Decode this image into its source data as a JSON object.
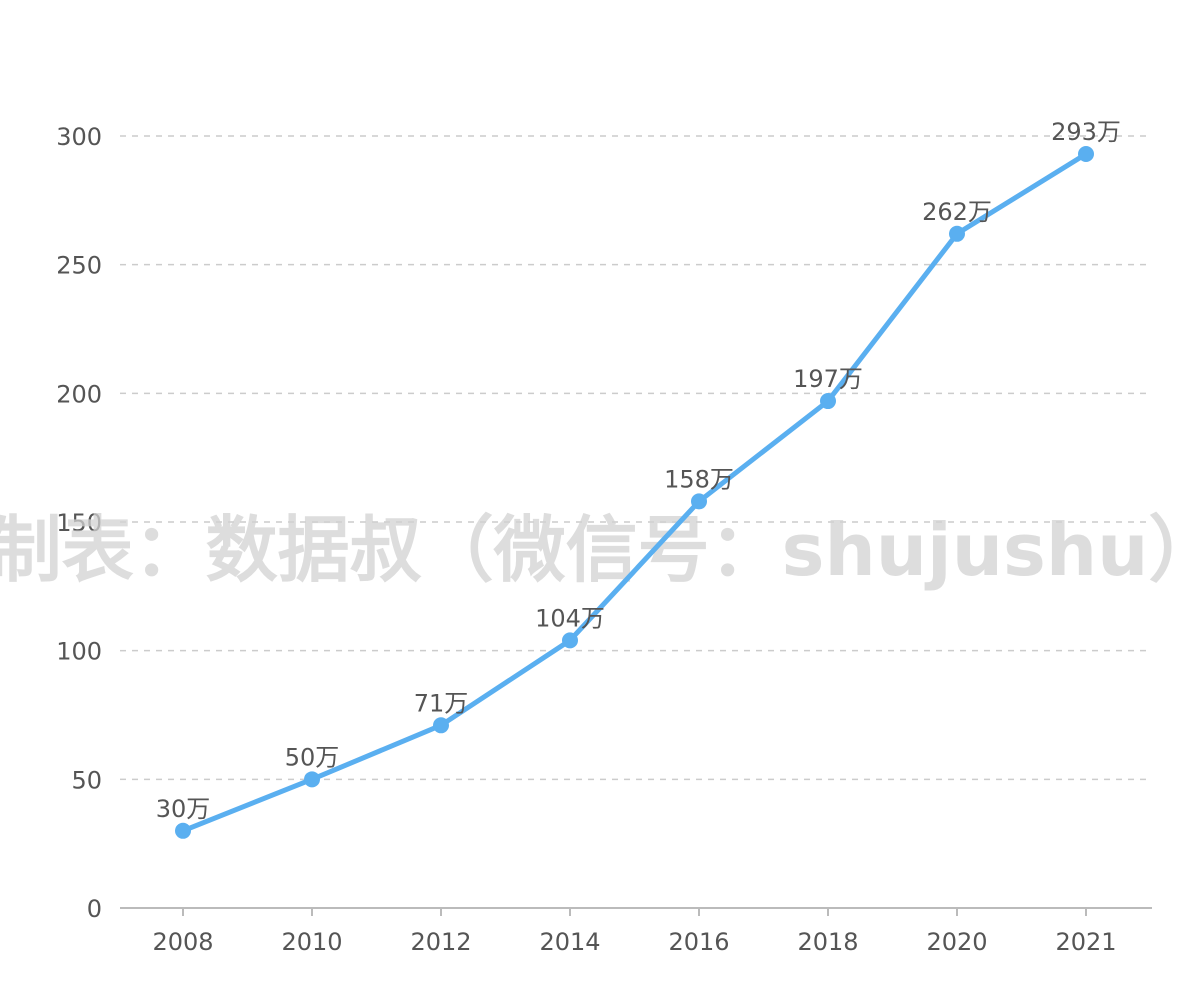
{
  "chart_data": {
    "type": "line",
    "title": "",
    "xlabel": "",
    "ylabel": "",
    "categories": [
      "2008",
      "2010",
      "2012",
      "2014",
      "2016",
      "2018",
      "2020",
      "2021"
    ],
    "series": [
      {
        "values": [
          30,
          50,
          71,
          104,
          158,
          197,
          262,
          293
        ],
        "data_labels": [
          "30万",
          "50万",
          "71万",
          "104万",
          "158万",
          "197万",
          "262万",
          "293万"
        ]
      }
    ],
    "ylim": [
      0,
      300
    ],
    "yticks": [
      0,
      50,
      100,
      150,
      200,
      250,
      300
    ],
    "grid": true,
    "legend": "none",
    "colors": {
      "line": "#5aaff0",
      "grid": "#cccccc",
      "axis": "#bbbbbb",
      "text": "#555555",
      "watermark": "#d2d2d2"
    }
  },
  "watermark": "制表：数据叔（微信号：shujushu）"
}
